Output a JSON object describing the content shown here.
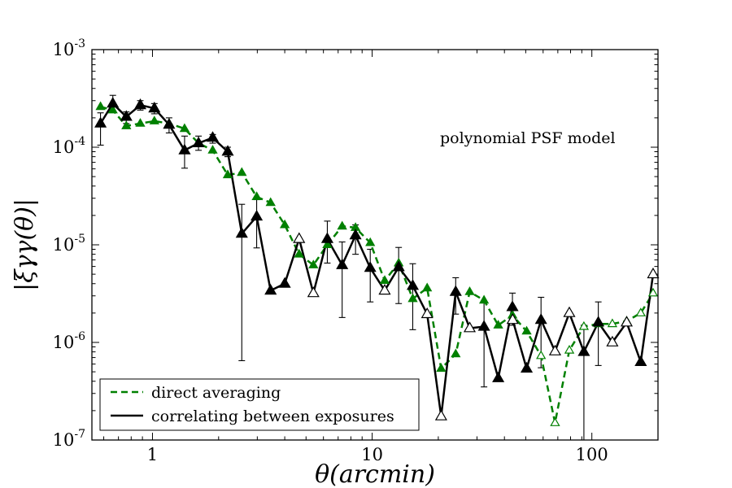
{
  "chart_data": {
    "type": "line",
    "scale": {
      "x": "log",
      "y": "log"
    },
    "xlim": [
      0.53,
      200
    ],
    "ylim": [
      1e-07,
      0.001
    ],
    "xlabel": "θ(arcmin)",
    "ylabel": "|ξγγ(θ)|",
    "annotation": "polynomial PSF model",
    "x_ticks": [
      {
        "value": 1,
        "label": "1"
      },
      {
        "value": 10,
        "label": "10"
      },
      {
        "value": 100,
        "label": "100"
      }
    ],
    "y_ticks": [
      {
        "value": 1e-07,
        "base": "10",
        "exp": "-7"
      },
      {
        "value": 1e-06,
        "base": "10",
        "exp": "-6"
      },
      {
        "value": 1e-05,
        "base": "10",
        "exp": "-5"
      },
      {
        "value": 0.0001,
        "base": "10",
        "exp": "-4"
      },
      {
        "value": 0.001,
        "base": "10",
        "exp": "-3"
      }
    ],
    "legend_position": "lower-left",
    "series": [
      {
        "name": "direct averaging",
        "color": "#008000",
        "style": "dashed",
        "points": [
          {
            "x": 0.58,
            "y": 0.00026,
            "filled": true
          },
          {
            "x": 0.66,
            "y": 0.00024,
            "filled": true
          },
          {
            "x": 0.76,
            "y": 0.000165,
            "filled": true
          },
          {
            "x": 0.88,
            "y": 0.000175,
            "filled": true
          },
          {
            "x": 1.02,
            "y": 0.000185,
            "filled": true
          },
          {
            "x": 1.19,
            "y": 0.000175,
            "filled": true
          },
          {
            "x": 1.4,
            "y": 0.000155,
            "filled": true
          },
          {
            "x": 1.62,
            "y": 0.00011,
            "filled": true
          },
          {
            "x": 1.88,
            "y": 9.3e-05,
            "filled": true
          },
          {
            "x": 2.2,
            "y": 5.2e-05,
            "filled": true
          },
          {
            "x": 2.55,
            "y": 5.5e-05,
            "filled": true
          },
          {
            "x": 2.98,
            "y": 3.1e-05,
            "filled": true
          },
          {
            "x": 3.45,
            "y": 2.7e-05,
            "filled": true
          },
          {
            "x": 4.0,
            "y": 1.6e-05,
            "filled": true
          },
          {
            "x": 4.65,
            "y": 8e-06,
            "filled": true
          },
          {
            "x": 5.4,
            "y": 6.2e-06,
            "filled": true
          },
          {
            "x": 6.25,
            "y": 1e-05,
            "filled": true
          },
          {
            "x": 7.3,
            "y": 1.55e-05,
            "filled": true
          },
          {
            "x": 8.4,
            "y": 1.5e-05,
            "filled": true
          },
          {
            "x": 9.8,
            "y": 1.05e-05,
            "filled": true
          },
          {
            "x": 11.4,
            "y": 4.3e-06,
            "filled": true
          },
          {
            "x": 13.2,
            "y": 6.5e-06,
            "filled": true
          },
          {
            "x": 15.3,
            "y": 2.8e-06,
            "filled": true
          },
          {
            "x": 17.8,
            "y": 3.6e-06,
            "filled": true
          },
          {
            "x": 20.6,
            "y": 5.4e-07,
            "filled": true
          },
          {
            "x": 24.0,
            "y": 7.6e-07,
            "filled": true
          },
          {
            "x": 27.8,
            "y": 3.3e-06,
            "filled": true
          },
          {
            "x": 32.3,
            "y": 2.7e-06,
            "filled": true
          },
          {
            "x": 37.5,
            "y": 1.5e-06,
            "filled": true
          },
          {
            "x": 43.5,
            "y": 1.9e-06,
            "filled": true
          },
          {
            "x": 50.5,
            "y": 1.3e-06,
            "filled": true
          },
          {
            "x": 58.7,
            "y": 7.3e-07,
            "filled": false
          },
          {
            "x": 68.0,
            "y": 1.5e-07,
            "filled": false
          },
          {
            "x": 79.0,
            "y": 8.3e-07,
            "filled": false
          },
          {
            "x": 92.0,
            "y": 1.45e-06,
            "filled": false
          },
          {
            "x": 107.0,
            "y": 1.55e-06,
            "filled": false
          },
          {
            "x": 124.0,
            "y": 1.55e-06,
            "filled": false
          },
          {
            "x": 144.0,
            "y": 1.65e-06,
            "filled": false
          },
          {
            "x": 167.0,
            "y": 2e-06,
            "filled": false
          },
          {
            "x": 190.0,
            "y": 3.2e-06,
            "filled": false
          }
        ]
      },
      {
        "name": "correlating between exposures",
        "color": "#000000",
        "style": "solid",
        "points": [
          {
            "x": 0.58,
            "y": 0.000175,
            "filled": true,
            "err_lo": 0.000105,
            "err_hi": 0.000225
          },
          {
            "x": 0.66,
            "y": 0.00028,
            "filled": true,
            "err_lo": 0.00023,
            "err_hi": 0.00034
          },
          {
            "x": 0.76,
            "y": 0.000205,
            "filled": true,
            "err_lo": 0.000175,
            "err_hi": 0.00023
          },
          {
            "x": 0.88,
            "y": 0.00027,
            "filled": true,
            "err_lo": 0.00024,
            "err_hi": 0.0003
          },
          {
            "x": 1.02,
            "y": 0.00025,
            "filled": true,
            "err_lo": 0.00022,
            "err_hi": 0.00028
          },
          {
            "x": 1.19,
            "y": 0.00017,
            "filled": true,
            "err_lo": 0.00014,
            "err_hi": 0.0002
          },
          {
            "x": 1.4,
            "y": 9.3e-05,
            "filled": true,
            "err_lo": 6.1e-05,
            "err_hi": 0.00013
          },
          {
            "x": 1.62,
            "y": 0.00011,
            "filled": true,
            "err_lo": 9.3e-05,
            "err_hi": 0.00013
          },
          {
            "x": 1.88,
            "y": 0.000125,
            "filled": true,
            "err_lo": 0.00011,
            "err_hi": 0.000135
          },
          {
            "x": 2.2,
            "y": 9e-05,
            "filled": true,
            "err_lo": 8e-05,
            "err_hi": 0.0001
          },
          {
            "x": 2.55,
            "y": 1.3e-05,
            "filled": true,
            "err_lo": 6.5e-07,
            "err_hi": 2.6e-05
          },
          {
            "x": 2.98,
            "y": 1.95e-05,
            "filled": true,
            "err_lo": 9.3e-06,
            "err_hi": 2.9e-05
          },
          {
            "x": 3.45,
            "y": 3.4e-06,
            "filled": true
          },
          {
            "x": 4.0,
            "y": 4e-06,
            "filled": true
          },
          {
            "x": 4.65,
            "y": 1.15e-05,
            "filled": false
          },
          {
            "x": 5.4,
            "y": 3.2e-06,
            "filled": false
          },
          {
            "x": 6.25,
            "y": 1.15e-05,
            "filled": true,
            "err_lo": 6.5e-06,
            "err_hi": 1.75e-05
          },
          {
            "x": 7.3,
            "y": 6.2e-06,
            "filled": true,
            "err_lo": 1.8e-06,
            "err_hi": 1.07e-05
          },
          {
            "x": 8.4,
            "y": 1.25e-05,
            "filled": true,
            "err_lo": 8e-06,
            "err_hi": 1.6e-05
          },
          {
            "x": 9.8,
            "y": 5.8e-06,
            "filled": true,
            "err_lo": 2.6e-06,
            "err_hi": 9e-06
          },
          {
            "x": 11.4,
            "y": 3.4e-06,
            "filled": false
          },
          {
            "x": 13.2,
            "y": 5.9e-06,
            "filled": true,
            "err_lo": 2.5e-06,
            "err_hi": 9.4e-06
          },
          {
            "x": 15.3,
            "y": 3.8e-06,
            "filled": true,
            "err_lo": 1.35e-06,
            "err_hi": 6.4e-06
          },
          {
            "x": 17.8,
            "y": 1.95e-06,
            "filled": false
          },
          {
            "x": 20.6,
            "y": 1.75e-07,
            "filled": false
          },
          {
            "x": 24.0,
            "y": 3.3e-06,
            "filled": true,
            "err_lo": 1.95e-06,
            "err_hi": 4.6e-06
          },
          {
            "x": 27.8,
            "y": 1.4e-06,
            "filled": false
          },
          {
            "x": 32.3,
            "y": 1.45e-06,
            "filled": true,
            "err_lo": 3.5e-07,
            "err_hi": 2.6e-06
          },
          {
            "x": 37.5,
            "y": 4.3e-07,
            "filled": true
          },
          {
            "x": 43.5,
            "y": 2.3e-06,
            "filled": true,
            "err_lo": 1.5e-06,
            "err_hi": 3.2e-06
          },
          {
            "x": 43.6,
            "y": 1.7e-06,
            "filled": false
          },
          {
            "x": 50.5,
            "y": 5.4e-07,
            "filled": true
          },
          {
            "x": 58.7,
            "y": 1.7e-06,
            "filled": true,
            "err_lo": 5.5e-07,
            "err_hi": 2.9e-06
          },
          {
            "x": 68.0,
            "y": 8.1e-07,
            "filled": false
          },
          {
            "x": 79.0,
            "y": 2e-06,
            "filled": false
          },
          {
            "x": 92.0,
            "y": 8e-07,
            "filled": true,
            "err_lo": 1e-07,
            "err_hi": 1.5e-06
          },
          {
            "x": 107.0,
            "y": 1.6e-06,
            "filled": true,
            "err_lo": 5.8e-07,
            "err_hi": 2.6e-06
          },
          {
            "x": 124.0,
            "y": 1e-06,
            "filled": false
          },
          {
            "x": 144.0,
            "y": 1.6e-06,
            "filled": false
          },
          {
            "x": 167.0,
            "y": 6.3e-07,
            "filled": true
          },
          {
            "x": 190.0,
            "y": 5e-06,
            "filled": false
          }
        ]
      }
    ]
  }
}
